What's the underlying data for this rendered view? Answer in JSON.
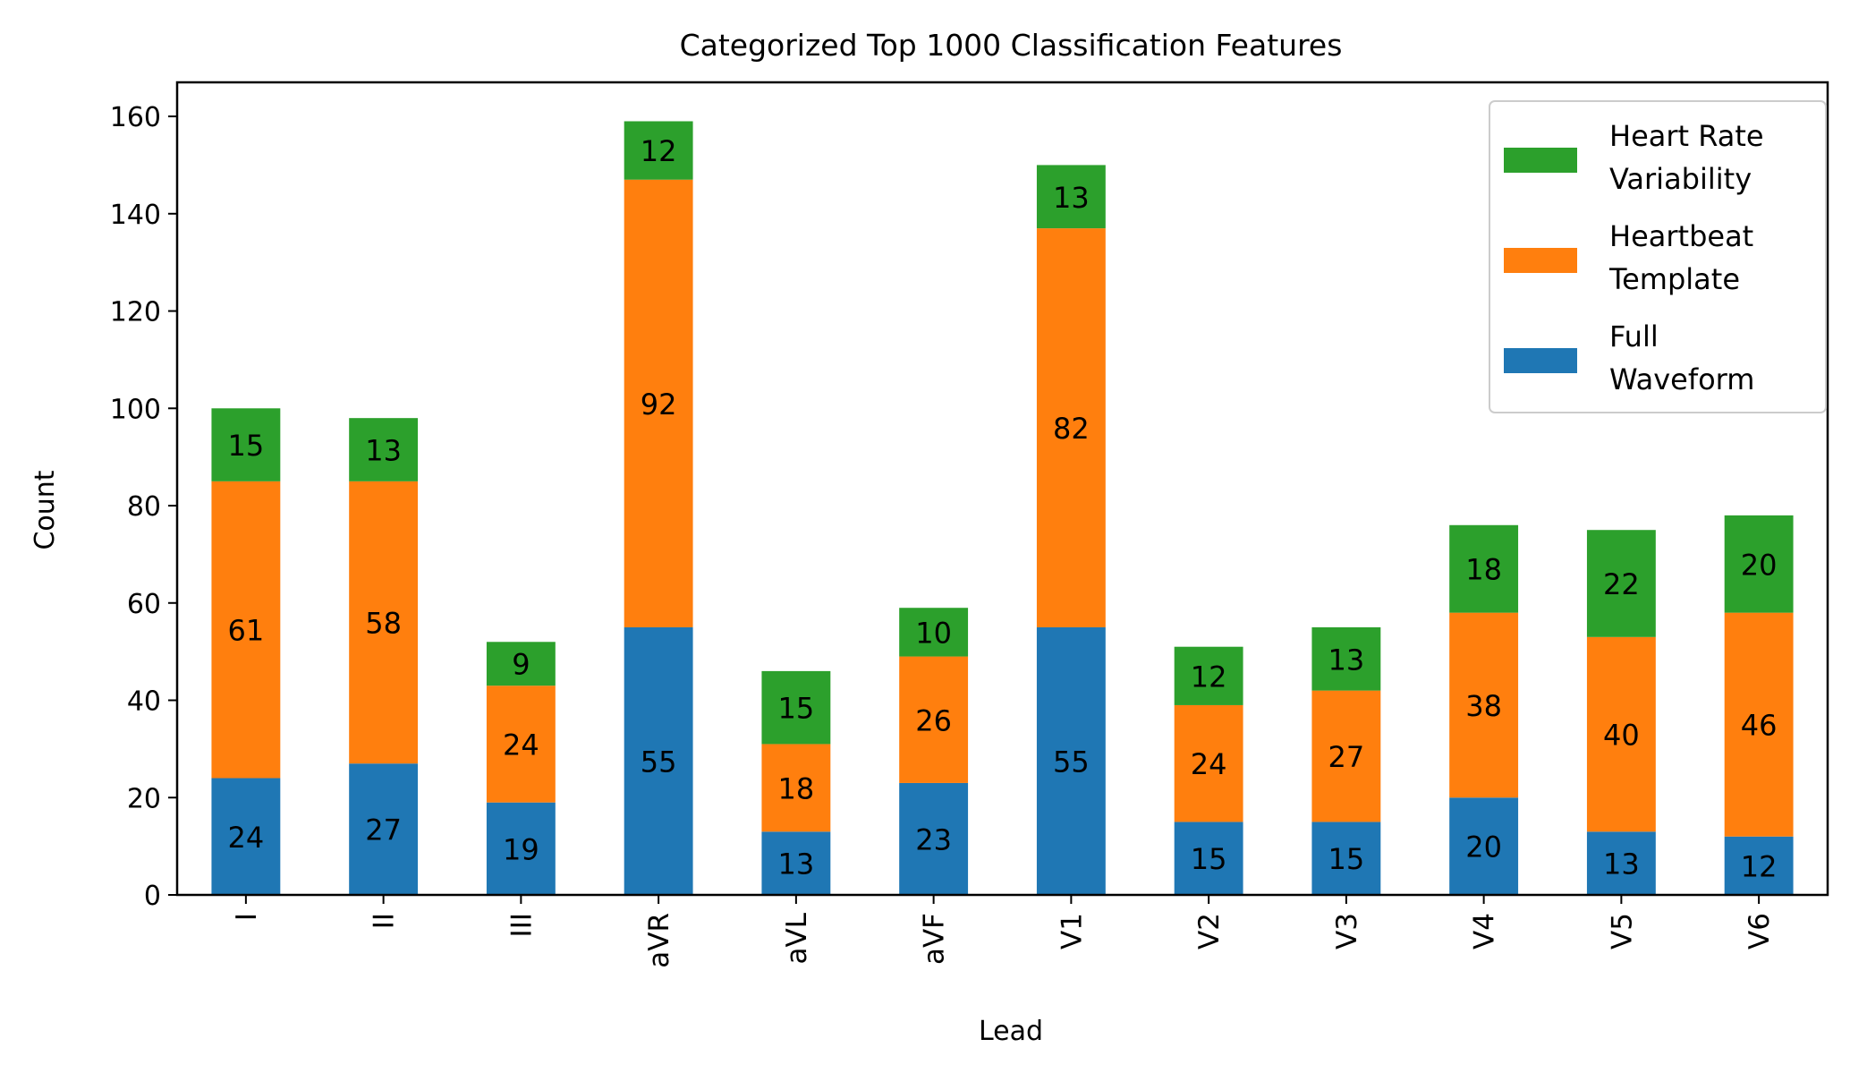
{
  "chart_data": {
    "type": "bar",
    "stacked": true,
    "title": "Categorized Top 1000 Classification Features",
    "xlabel": "Lead",
    "ylabel": "Count",
    "ylim": [
      0,
      167
    ],
    "yticks": [
      0,
      20,
      40,
      60,
      80,
      100,
      120,
      140,
      160
    ],
    "grid": false,
    "legend_position": "top-right",
    "categories": [
      "I",
      "II",
      "III",
      "aVR",
      "aVL",
      "aVF",
      "V1",
      "V2",
      "V3",
      "V4",
      "V5",
      "V6"
    ],
    "series": [
      {
        "name": "Full Waveform",
        "legend_lines": [
          "Full",
          "Waveform"
        ],
        "color": "#1f77b4",
        "values": [
          24,
          27,
          19,
          55,
          13,
          23,
          55,
          15,
          15,
          20,
          13,
          12
        ]
      },
      {
        "name": "Heartbeat Template",
        "legend_lines": [
          "Heartbeat",
          "Template"
        ],
        "color": "#ff7f0e",
        "values": [
          61,
          58,
          24,
          92,
          18,
          26,
          82,
          24,
          27,
          38,
          40,
          46
        ]
      },
      {
        "name": "Heart Rate Variability",
        "legend_lines": [
          "Heart Rate",
          "Variability"
        ],
        "color": "#2ca02c",
        "values": [
          15,
          13,
          9,
          12,
          15,
          10,
          13,
          12,
          13,
          18,
          22,
          20
        ]
      }
    ]
  }
}
